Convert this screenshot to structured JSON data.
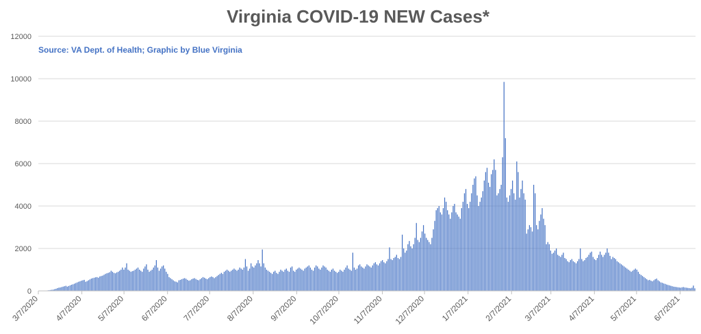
{
  "chart_data": {
    "type": "bar",
    "title": "Virginia COVID-19 NEW Cases*",
    "note": "Source: VA Dept. of Health; Graphic by Blue Virginia",
    "xlabel": "",
    "ylabel": "",
    "ylim": [
      0,
      12000
    ],
    "y_ticks": [
      0,
      2000,
      4000,
      6000,
      8000,
      10000,
      12000
    ],
    "grid": true,
    "x_start": "3/7/2020",
    "x_end": "6/18/2021",
    "x_ticks": [
      "3/7/2020",
      "4/7/2020",
      "5/7/2020",
      "6/7/2020",
      "7/7/2020",
      "8/7/2020",
      "9/7/2020",
      "10/7/2020",
      "11/7/2020",
      "12/7/2020",
      "1/7/2021",
      "2/7/2021",
      "3/7/2021",
      "4/7/2021",
      "5/7/2021",
      "6/7/2021"
    ],
    "colors": {
      "bar": "#4472c4",
      "grid": "#d9d9d9",
      "title": "#595959",
      "note": "#4472c4"
    },
    "series": [
      {
        "values": [
          2,
          3,
          5,
          8,
          10,
          15,
          20,
          30,
          40,
          50,
          60,
          80,
          100,
          130,
          150,
          160,
          180,
          200,
          220,
          240,
          200,
          230,
          260,
          290,
          310,
          340,
          370,
          400,
          430,
          450,
          480,
          500,
          520,
          430,
          460,
          500,
          540,
          580,
          600,
          620,
          640,
          650,
          620,
          680,
          700,
          720,
          760,
          800,
          830,
          850,
          880,
          950,
          900,
          850,
          830,
          870,
          900,
          950,
          1000,
          1100,
          1000,
          1100,
          1300,
          1000,
          950,
          900,
          930,
          950,
          1000,
          1050,
          1100,
          1000,
          950,
          900,
          1050,
          1150,
          1250,
          1000,
          900,
          950,
          1000,
          1100,
          1200,
          1450,
          1100,
          950,
          1050,
          1150,
          1200,
          1050,
          900,
          800,
          650,
          600,
          550,
          500,
          450,
          430,
          400,
          500,
          520,
          550,
          580,
          600,
          570,
          520,
          480,
          500,
          550,
          580,
          600,
          560,
          520,
          500,
          550,
          600,
          650,
          620,
          580,
          550,
          600,
          650,
          680,
          650,
          600,
          650,
          700,
          750,
          800,
          850,
          800,
          900,
          950,
          1000,
          950,
          900,
          950,
          1000,
          1050,
          1000,
          950,
          1000,
          1100,
          1050,
          1000,
          1100,
          1500,
          1150,
          950,
          1050,
          1300,
          1150,
          1100,
          1200,
          1300,
          1450,
          1300,
          1150,
          1950,
          1300,
          1100,
          1000,
          950,
          900,
          850,
          800,
          900,
          950,
          850,
          800,
          900,
          1000,
          950,
          900,
          1000,
          1050,
          950,
          900,
          1100,
          1150,
          950,
          900,
          1000,
          1050,
          1100,
          1050,
          1000,
          950,
          1050,
          1100,
          1150,
          1200,
          1100,
          1000,
          950,
          1100,
          1200,
          1150,
          1050,
          1000,
          1100,
          1200,
          1150,
          1100,
          1000,
          950,
          900,
          1000,
          1050,
          950,
          900,
          850,
          900,
          1000,
          950,
          900,
          1000,
          1100,
          1200,
          1050,
          1000,
          950,
          1800,
          1100,
          1000,
          1050,
          1200,
          1250,
          1150,
          1100,
          1050,
          1150,
          1250,
          1200,
          1150,
          1100,
          1200,
          1300,
          1350,
          1250,
          1200,
          1300,
          1400,
          1450,
          1350,
          1300,
          1400,
          1500,
          2050,
          1500,
          1450,
          1550,
          1600,
          1700,
          1550,
          1500,
          1600,
          2650,
          2000,
          1800,
          1900,
          2200,
          2350,
          2100,
          2000,
          2200,
          2500,
          3200,
          2400,
          2300,
          2500,
          2800,
          3100,
          2700,
          2500,
          2400,
          2300,
          2200,
          2500,
          2900,
          3300,
          3800,
          3900,
          4000,
          3700,
          3600,
          3900,
          4400,
          4200,
          3800,
          3600,
          3400,
          3700,
          4000,
          4100,
          3700,
          3600,
          3500,
          3400,
          3900,
          4200,
          4600,
          4800,
          4100,
          3900,
          4200,
          4600,
          5000,
          5300,
          5400,
          4500,
          4000,
          4200,
          4400,
          4700,
          5200,
          5600,
          5800,
          5100,
          4900,
          5500,
          5700,
          6200,
          5700,
          4500,
          4600,
          4800,
          5000,
          6300,
          9850,
          7200,
          4400,
          4200,
          4500,
          4800,
          5200,
          4600,
          4300,
          6100,
          5600,
          4400,
          4800,
          5200,
          4600,
          4300,
          2700,
          2900,
          3100,
          3000,
          2800,
          5000,
          4600,
          3100,
          2900,
          3300,
          3600,
          3900,
          3400,
          3100,
          2200,
          2300,
          2200,
          1900,
          1750,
          1800,
          1900,
          2000,
          1700,
          1650,
          1600,
          1700,
          1800,
          1550,
          1500,
          1400,
          1350,
          1450,
          1500,
          1400,
          1350,
          1300,
          1400,
          1500,
          2000,
          1500,
          1400,
          1450,
          1550,
          1600,
          1700,
          1800,
          1850,
          1600,
          1500,
          1450,
          1550,
          1700,
          1850,
          1700,
          1600,
          1700,
          1800,
          2000,
          1800,
          1650,
          1500,
          1600,
          1550,
          1500,
          1400,
          1350,
          1300,
          1250,
          1200,
          1150,
          1100,
          1050,
          1000,
          950,
          900,
          950,
          1000,
          1050,
          1000,
          900,
          800,
          750,
          700,
          650,
          600,
          550,
          500,
          520,
          480,
          450,
          500,
          550,
          580,
          500,
          450,
          400,
          380,
          350,
          330,
          300,
          280,
          260,
          240,
          220,
          200,
          190,
          180,
          170,
          160,
          150,
          170,
          180,
          160,
          150,
          140,
          130,
          120,
          150,
          250,
          120
        ]
      }
    ]
  }
}
